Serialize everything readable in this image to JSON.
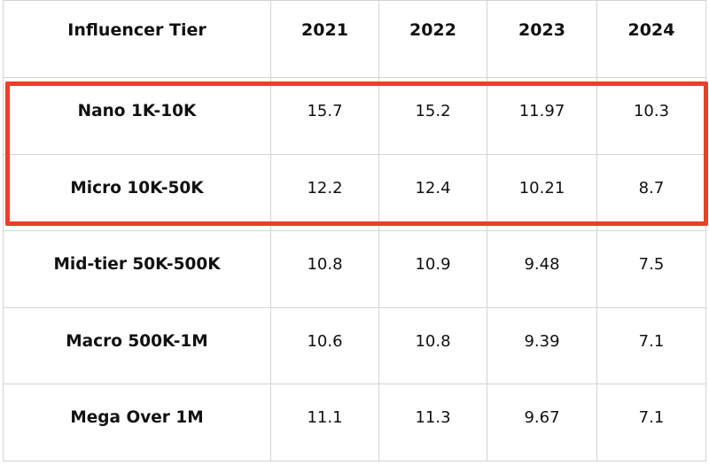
{
  "table": {
    "headers": [
      "Influencer Tier",
      "2021",
      "2022",
      "2023",
      "2024"
    ],
    "rows": [
      {
        "tier": "Nano 1K-10K",
        "values": [
          "15.7",
          "15.2",
          "11.97",
          "10.3"
        ]
      },
      {
        "tier": "Micro 10K-50K",
        "values": [
          "12.2",
          "12.4",
          "10.21",
          "8.7"
        ]
      },
      {
        "tier": "Mid-tier 50K-500K",
        "values": [
          "10.8",
          "10.9",
          "9.48",
          "7.5"
        ]
      },
      {
        "tier": "Macro 500K-1M",
        "values": [
          "10.6",
          "10.8",
          "9.39",
          "7.1"
        ]
      },
      {
        "tier": "Mega Over 1M",
        "values": [
          "11.1",
          "11.3",
          "9.67",
          "7.1"
        ]
      }
    ]
  },
  "highlight": {
    "color": "#e8402a",
    "rows": [
      "Nano 1K-10K",
      "Micro 10K-50K"
    ]
  }
}
